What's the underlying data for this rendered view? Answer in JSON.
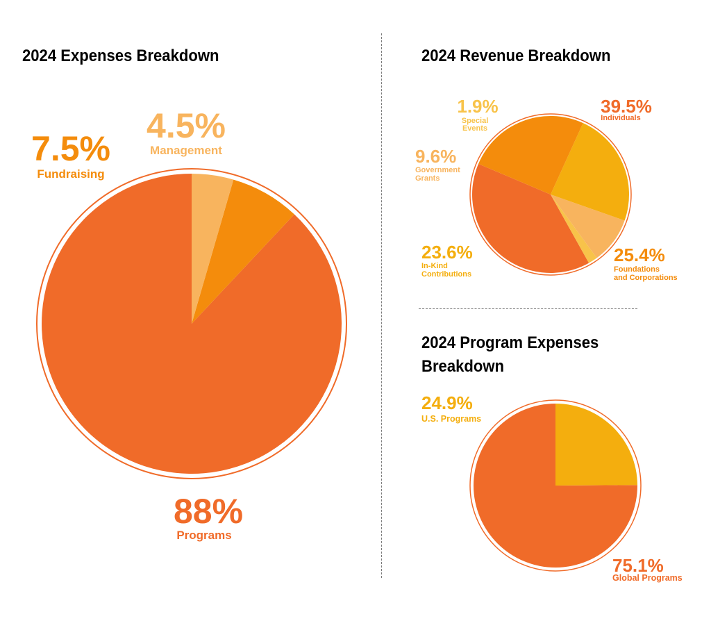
{
  "colors": {
    "programs": "#f06b29",
    "fundraising": "#f48c0c",
    "management": "#f8b45e",
    "individuals": "#f06b29",
    "foundations": "#f48c0c",
    "inkind": "#f4ae0e",
    "government": "#f8b45e",
    "special": "#f8c34a",
    "global": "#f06b29",
    "us": "#f4ae0e",
    "outline": "#f06b29"
  },
  "chart_data": [
    {
      "type": "pie",
      "title": "2024 Expenses Breakdown",
      "slices": [
        {
          "pct_label": "88%",
          "name": "Programs",
          "value": 88,
          "color_key": "programs"
        },
        {
          "pct_label": "7.5%",
          "name": "Fundraising",
          "value": 7.5,
          "color_key": "fundraising"
        },
        {
          "pct_label": "4.5%",
          "name": "Management",
          "value": 4.5,
          "color_key": "management"
        }
      ]
    },
    {
      "type": "pie",
      "title": "2024 Revenue Breakdown",
      "slices": [
        {
          "pct_label": "39.5%",
          "name": "Individuals",
          "value": 39.5,
          "color_key": "individuals"
        },
        {
          "pct_label": "25.4%",
          "name": "Foundations and Corporations",
          "lines": [
            "Foundations",
            "and Corporations"
          ],
          "value": 25.4,
          "color_key": "foundations"
        },
        {
          "pct_label": "23.6%",
          "name": "In-Kind Contributions",
          "lines": [
            "In-Kind",
            "Contributions"
          ],
          "value": 23.6,
          "color_key": "inkind"
        },
        {
          "pct_label": "9.6%",
          "name": "Government Grants",
          "lines": [
            "Government",
            "Grants"
          ],
          "value": 9.6,
          "color_key": "government"
        },
        {
          "pct_label": "1.9%",
          "name": "Special Events",
          "lines": [
            "Special",
            "Events"
          ],
          "value": 1.9,
          "color_key": "special"
        }
      ]
    },
    {
      "type": "pie",
      "title": "2024 Program Expenses Breakdown",
      "title_lines": [
        "2024 Program Expenses",
        "Breakdown"
      ],
      "slices": [
        {
          "pct_label": "75.1%",
          "name": "Global Programs",
          "value": 75.1,
          "color_key": "global"
        },
        {
          "pct_label": "24.9%",
          "name": "U.S. Programs",
          "value": 24.9,
          "color_key": "us"
        }
      ]
    }
  ]
}
